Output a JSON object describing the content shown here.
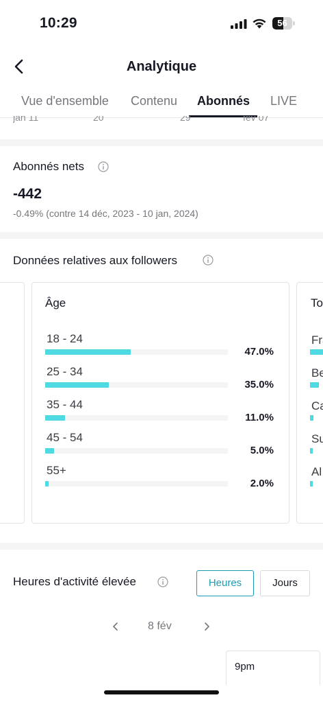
{
  "status_bar": {
    "time": "10:29",
    "battery": "56",
    "battery_level": 0.56
  },
  "header": {
    "title": "Analytique"
  },
  "tabs": [
    {
      "label": "Vue d'ensemble"
    },
    {
      "label": "Contenu"
    },
    {
      "label": "Abonnés",
      "active": true
    },
    {
      "label": "LIVE"
    }
  ],
  "date_axis": [
    "jan 11",
    "20",
    "29",
    "fév 07"
  ],
  "net_followers": {
    "title": "Abonnés nets",
    "value": "-442",
    "comparison": "-0.49% (contre 14 déc, 2023 - 10 jan, 2024)"
  },
  "follower_data": {
    "title": "Données relatives aux followers",
    "age_card": {
      "title": "Âge",
      "rows": [
        {
          "label": "18 - 24",
          "pct_text": "47.0%",
          "value": 0.47
        },
        {
          "label": "25 - 34",
          "pct_text": "35.0%",
          "value": 0.35
        },
        {
          "label": "35 - 44",
          "pct_text": "11.0%",
          "value": 0.11
        },
        {
          "label": "45 - 54",
          "pct_text": "5.0%",
          "value": 0.05
        },
        {
          "label": "55+",
          "pct_text": "2.0%",
          "value": 0.02
        }
      ]
    },
    "locations_card": {
      "title_fragment": "To",
      "rows": [
        {
          "label_fragment": "Fra"
        },
        {
          "label_fragment": "Be"
        },
        {
          "label_fragment": "Ca"
        },
        {
          "label_fragment": "Su"
        },
        {
          "label_fragment": "Al"
        }
      ]
    }
  },
  "activity": {
    "title": "Heures d'activité élevée",
    "hours_button": "Heures",
    "days_button": "Jours",
    "date": "8 fév",
    "tooltip": "9pm"
  },
  "colors": {
    "accent_bar": "#4fd9e3",
    "active_button": "#1d9bb5",
    "text": "#161823",
    "muted": "#75767c"
  }
}
